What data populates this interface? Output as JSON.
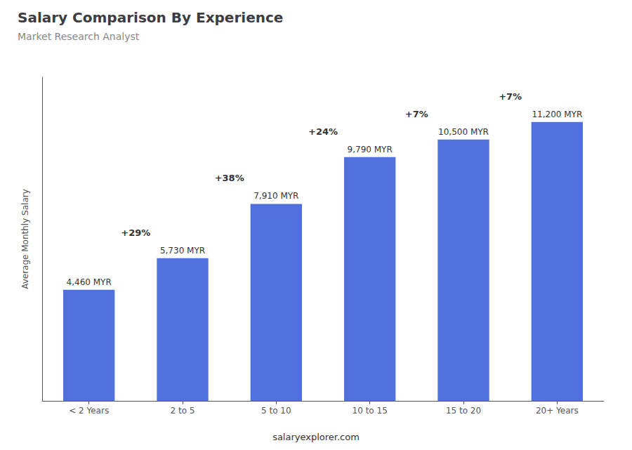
{
  "chart_data": {
    "type": "bar",
    "title": "Salary Comparison By Experience",
    "subtitle": "Market Research Analyst",
    "ylabel": "Average Monthly Salary",
    "categories": [
      "< 2 Years",
      "2 to 5",
      "5 to 10",
      "10 to 15",
      "15 to 20",
      "20+ Years"
    ],
    "values": [
      4460,
      5730,
      7910,
      9790,
      10500,
      11200
    ],
    "value_labels": [
      "4,460 MYR",
      "5,730 MYR",
      "7,910 MYR",
      "9,790 MYR",
      "10,500 MYR",
      "11,200 MYR"
    ],
    "data_labels": true,
    "ylim": [
      0,
      13000
    ],
    "tick_labels": "x",
    "grid": false,
    "annotations": [
      {
        "text": "+29%",
        "from": "< 2 Years",
        "to": "2 to 5"
      },
      {
        "text": "+38%",
        "from": "2 to 5",
        "to": "5 to 10"
      },
      {
        "text": "+24%",
        "from": "5 to 10",
        "to": "10 to 15"
      },
      {
        "text": "+7%",
        "from": "10 to 15",
        "to": "15 to 20"
      },
      {
        "text": "+7%",
        "from": "15 to 20",
        "to": "20+ Years"
      },
      {
        "text": "salaryexplorer.com"
      }
    ]
  }
}
